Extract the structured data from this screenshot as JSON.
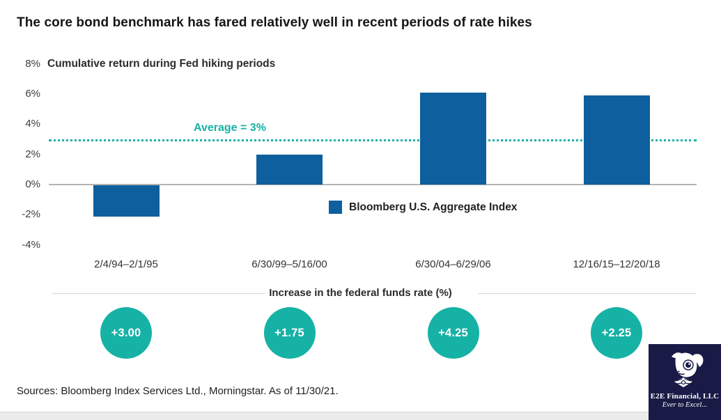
{
  "page": {
    "title": "The core bond benchmark has fared relatively well in recent periods of rate hikes",
    "sources": "Sources: Bloomberg Index Services Ltd., Morningstar. As of 11/30/21."
  },
  "chart_data": {
    "type": "bar",
    "title": "Cumulative return during Fed hiking periods",
    "categories": [
      "2/4/94–2/1/95",
      "6/30/99–5/16/00",
      "6/30/04–6/29/06",
      "12/16/15–12/20/18"
    ],
    "values": [
      -2.1,
      2.0,
      6.1,
      5.9
    ],
    "series_name": "Bloomberg U.S. Aggregate Index",
    "average_value": 3,
    "average_label": "Average = 3%",
    "ylim": [
      -4,
      8
    ],
    "yticks": [
      8,
      6,
      4,
      2,
      0,
      -2,
      -4
    ],
    "ytick_labels": [
      "8%",
      "6%",
      "4%",
      "2%",
      "0%",
      "-2%",
      "-4%"
    ],
    "grid": false,
    "legend_position": "inside-right",
    "fed_funds_row": {
      "label": "Increase in the federal funds rate (%)",
      "values": [
        "+3.00",
        "+1.75",
        "+4.25",
        "+2.25"
      ]
    }
  },
  "colors": {
    "bar_blue": "#0e5f9d",
    "teal": "#16b2a5",
    "logo_navy": "#191b46",
    "axis_gray": "#b3b3b3"
  },
  "logo": {
    "company": "E2E Financial, LLC",
    "tagline": "Ever to Excel..."
  }
}
